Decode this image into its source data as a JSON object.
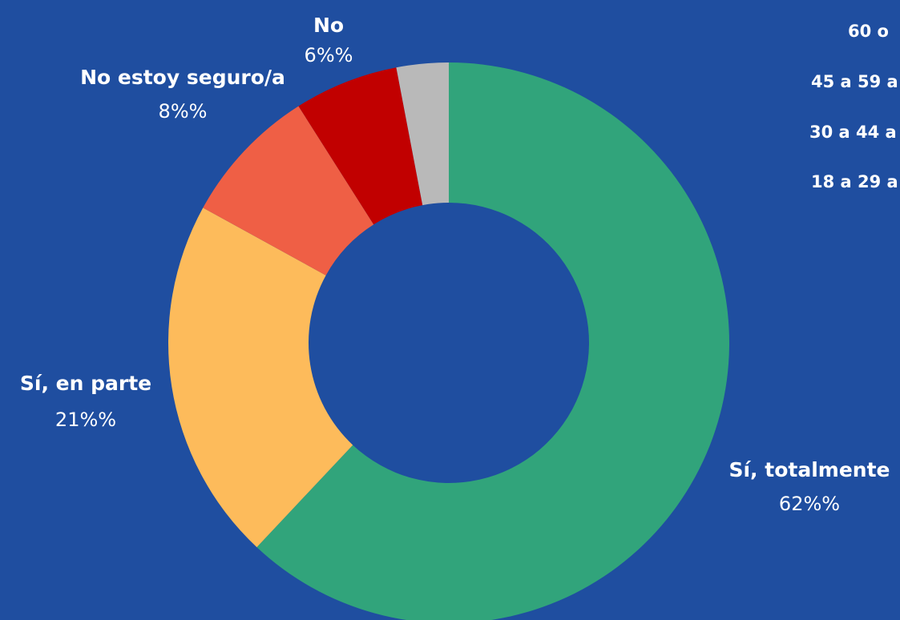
{
  "chart_data": {
    "type": "donut",
    "categories": [
      "Sí, totalmente",
      "Sí, en parte",
      "No estoy seguro/a",
      "No",
      null
    ],
    "values": [
      62,
      21,
      8,
      6,
      3
    ],
    "value_labels": [
      "62%%",
      "21%%",
      "8%%",
      "6%%",
      null
    ],
    "colors": [
      "#31a47b",
      "#fdbb5b",
      "#ef5f45",
      "#c10000",
      "#b9b9b9"
    ],
    "legend_fragments": [
      "60 o",
      "45 a 59 a",
      "30 a 44 a",
      "18 a 29 a"
    ]
  }
}
